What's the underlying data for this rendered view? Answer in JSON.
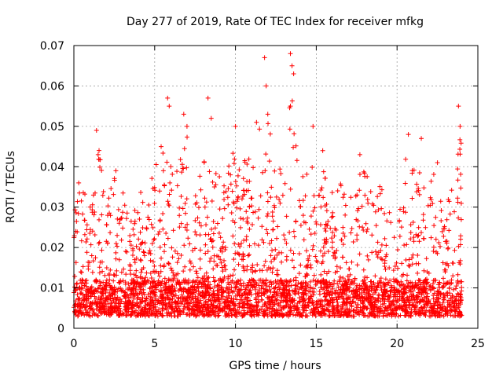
{
  "chart_data": {
    "type": "scatter",
    "title": "Day 277 of 2019, Rate Of TEC Index for receiver mfkg",
    "xlabel": "GPS time / hours",
    "ylabel": "ROTI / TECUs",
    "xlim": [
      0,
      25
    ],
    "ylim": [
      0,
      0.07
    ],
    "xticks": [
      0,
      5,
      10,
      15,
      20,
      25
    ],
    "xtick_labels": [
      "0",
      "5",
      "10",
      "15",
      "20",
      "25"
    ],
    "yticks": [
      0,
      0.01,
      0.02,
      0.03,
      0.04,
      0.05,
      0.06,
      0.07
    ],
    "ytick_labels": [
      "0",
      "0.01",
      "0.02",
      "0.03",
      "0.04",
      "0.05",
      "0.06",
      "0.07"
    ],
    "grid": true,
    "marker": "plus",
    "color": "#ff0000",
    "series": [
      {
        "name": "ROTI",
        "x_range": [
          0,
          24
        ],
        "dense_band": [
          0.003,
          0.012
        ],
        "notable_points": [
          {
            "x": 0.3,
            "y": 0.036
          },
          {
            "x": 1.4,
            "y": 0.049
          },
          {
            "x": 1.5,
            "y": 0.043
          },
          {
            "x": 2.6,
            "y": 0.039
          },
          {
            "x": 5.4,
            "y": 0.045
          },
          {
            "x": 5.8,
            "y": 0.057
          },
          {
            "x": 5.9,
            "y": 0.055
          },
          {
            "x": 6.8,
            "y": 0.053
          },
          {
            "x": 7.0,
            "y": 0.05
          },
          {
            "x": 8.3,
            "y": 0.057
          },
          {
            "x": 8.5,
            "y": 0.052
          },
          {
            "x": 10.0,
            "y": 0.05
          },
          {
            "x": 11.3,
            "y": 0.051
          },
          {
            "x": 11.8,
            "y": 0.067
          },
          {
            "x": 11.9,
            "y": 0.06
          },
          {
            "x": 12.0,
            "y": 0.053
          },
          {
            "x": 13.4,
            "y": 0.068
          },
          {
            "x": 13.5,
            "y": 0.065
          },
          {
            "x": 13.6,
            "y": 0.063
          },
          {
            "x": 13.4,
            "y": 0.055
          },
          {
            "x": 14.8,
            "y": 0.05
          },
          {
            "x": 15.4,
            "y": 0.044
          },
          {
            "x": 17.7,
            "y": 0.043
          },
          {
            "x": 20.7,
            "y": 0.048
          },
          {
            "x": 21.5,
            "y": 0.047
          },
          {
            "x": 22.5,
            "y": 0.041
          },
          {
            "x": 23.8,
            "y": 0.055
          },
          {
            "x": 23.9,
            "y": 0.05
          }
        ],
        "envelope": [
          {
            "x": 0,
            "y": 0.03
          },
          {
            "x": 0.5,
            "y": 0.037
          },
          {
            "x": 1,
            "y": 0.032
          },
          {
            "x": 1.5,
            "y": 0.048
          },
          {
            "x": 2,
            "y": 0.03
          },
          {
            "x": 2.5,
            "y": 0.038
          },
          {
            "x": 3,
            "y": 0.034
          },
          {
            "x": 3.5,
            "y": 0.03
          },
          {
            "x": 4,
            "y": 0.033
          },
          {
            "x": 4.5,
            "y": 0.037
          },
          {
            "x": 5,
            "y": 0.04
          },
          {
            "x": 5.5,
            "y": 0.045
          },
          {
            "x": 6,
            "y": 0.043
          },
          {
            "x": 6.5,
            "y": 0.04
          },
          {
            "x": 7,
            "y": 0.05
          },
          {
            "x": 7.5,
            "y": 0.037
          },
          {
            "x": 8,
            "y": 0.04
          },
          {
            "x": 8.5,
            "y": 0.05
          },
          {
            "x": 9,
            "y": 0.04
          },
          {
            "x": 9.5,
            "y": 0.04
          },
          {
            "x": 10,
            "y": 0.045
          },
          {
            "x": 10.5,
            "y": 0.042
          },
          {
            "x": 11,
            "y": 0.045
          },
          {
            "x": 11.5,
            "y": 0.05
          },
          {
            "x": 12,
            "y": 0.052
          },
          {
            "x": 12.5,
            "y": 0.04
          },
          {
            "x": 13,
            "y": 0.042
          },
          {
            "x": 13.5,
            "y": 0.06
          },
          {
            "x": 14,
            "y": 0.04
          },
          {
            "x": 14.5,
            "y": 0.038
          },
          {
            "x": 15,
            "y": 0.045
          },
          {
            "x": 15.5,
            "y": 0.04
          },
          {
            "x": 16,
            "y": 0.034
          },
          {
            "x": 16.5,
            "y": 0.036
          },
          {
            "x": 17,
            "y": 0.035
          },
          {
            "x": 17.5,
            "y": 0.04
          },
          {
            "x": 18,
            "y": 0.04
          },
          {
            "x": 18.5,
            "y": 0.035
          },
          {
            "x": 19,
            "y": 0.036
          },
          {
            "x": 19.5,
            "y": 0.03
          },
          {
            "x": 20,
            "y": 0.025
          },
          {
            "x": 20.5,
            "y": 0.046
          },
          {
            "x": 21,
            "y": 0.04
          },
          {
            "x": 21.5,
            "y": 0.042
          },
          {
            "x": 22,
            "y": 0.038
          },
          {
            "x": 22.5,
            "y": 0.04
          },
          {
            "x": 23,
            "y": 0.03
          },
          {
            "x": 23.5,
            "y": 0.038
          },
          {
            "x": 24,
            "y": 0.05
          }
        ]
      }
    ]
  }
}
